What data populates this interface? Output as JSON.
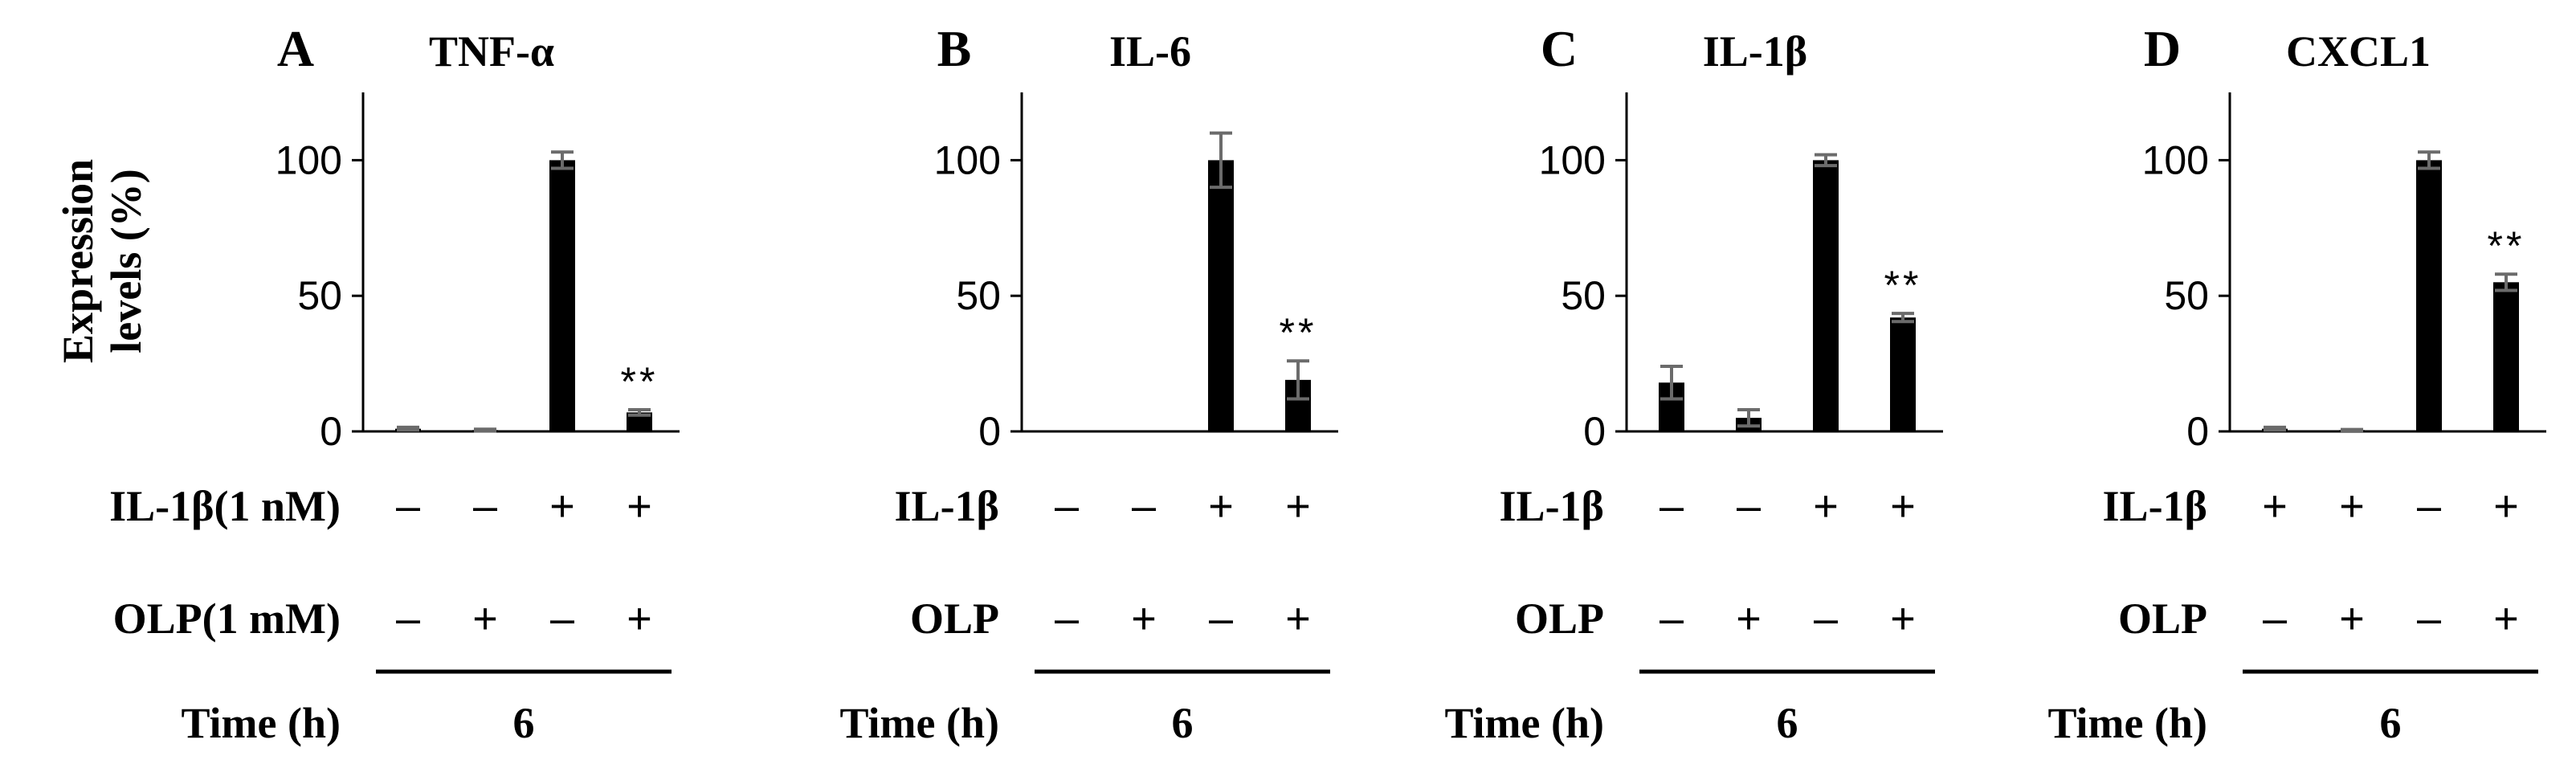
{
  "y_axis_label_line1": "Expression",
  "y_axis_label_line2": "levels (%)",
  "chart_data": [
    {
      "type": "bar",
      "letter": "A",
      "title": "TNF-α",
      "ylim": [
        0,
        125
      ],
      "yticks": [
        0,
        50,
        100
      ],
      "values": [
        1,
        0.5,
        100,
        7
      ],
      "errors": [
        0.5,
        0.3,
        3,
        1
      ],
      "significance": [
        "",
        "",
        "",
        "**"
      ],
      "rows": [
        {
          "label": "IL-1β(1 nM)",
          "signs": [
            "–",
            "–",
            "+",
            "+"
          ]
        },
        {
          "label": "OLP(1 mM)",
          "signs": [
            "–",
            "+",
            "–",
            "+"
          ]
        }
      ],
      "time_label": "Time (h)",
      "time_value": "6"
    },
    {
      "type": "bar",
      "letter": "B",
      "title": "IL-6",
      "ylim": [
        0,
        125
      ],
      "yticks": [
        0,
        50,
        100
      ],
      "values": [
        0,
        0,
        100,
        19
      ],
      "errors": [
        0,
        0,
        10,
        7
      ],
      "significance": [
        "",
        "",
        "",
        "**"
      ],
      "rows": [
        {
          "label": "IL-1β",
          "signs": [
            "–",
            "–",
            "+",
            "+"
          ]
        },
        {
          "label": "OLP",
          "signs": [
            "–",
            "+",
            "–",
            "+"
          ]
        }
      ],
      "time_label": "Time (h)",
      "time_value": "6"
    },
    {
      "type": "bar",
      "letter": "C",
      "title": "IL-1β",
      "ylim": [
        0,
        125
      ],
      "yticks": [
        0,
        50,
        100
      ],
      "values": [
        18,
        5,
        100,
        42
      ],
      "errors": [
        6,
        3,
        2,
        1.5
      ],
      "significance": [
        "",
        "",
        "",
        "**"
      ],
      "rows": [
        {
          "label": "IL-1β",
          "signs": [
            "–",
            "–",
            "+",
            "+"
          ]
        },
        {
          "label": "OLP",
          "signs": [
            "–",
            "+",
            "–",
            "+"
          ]
        }
      ],
      "time_label": "Time (h)",
      "time_value": "6"
    },
    {
      "type": "bar",
      "letter": "D",
      "title": "CXCL1",
      "ylim": [
        0,
        125
      ],
      "yticks": [
        0,
        50,
        100
      ],
      "values": [
        1,
        0.5,
        100,
        55
      ],
      "errors": [
        0.5,
        0.2,
        3,
        3
      ],
      "significance": [
        "",
        "",
        "",
        "**"
      ],
      "rows": [
        {
          "label": "IL-1β",
          "signs": [
            "+",
            "+",
            "–",
            "+"
          ]
        },
        {
          "label": "OLP",
          "signs": [
            "–",
            "+",
            "–",
            "+"
          ]
        }
      ],
      "time_label": "Time (h)",
      "time_value": "6"
    }
  ]
}
